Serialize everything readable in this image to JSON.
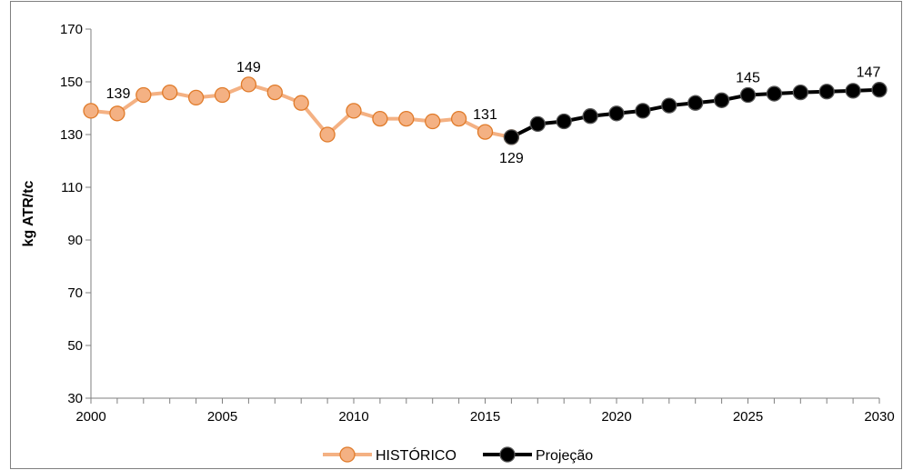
{
  "chart_data": {
    "type": "line",
    "title": "",
    "xlabel": "",
    "ylabel": "kg ATR/tc",
    "ylim": [
      30,
      170
    ],
    "yticks": [
      30,
      50,
      70,
      90,
      110,
      130,
      150,
      170
    ],
    "xlim": [
      2000,
      2030
    ],
    "xticks": [
      2000,
      2005,
      2010,
      2015,
      2020,
      2025,
      2030
    ],
    "grid": false,
    "legend": "bottom",
    "series": [
      {
        "name": "HISTÓRICO",
        "color": "#f4b183",
        "marker_edge": "#e07b2a",
        "x": [
          2000,
          2001,
          2002,
          2003,
          2004,
          2005,
          2006,
          2007,
          2008,
          2009,
          2010,
          2011,
          2012,
          2013,
          2014,
          2015,
          2016
        ],
        "values": [
          139,
          138,
          145,
          146,
          144,
          145,
          149,
          146,
          142,
          130,
          139,
          136,
          136,
          135,
          136,
          131,
          129
        ]
      },
      {
        "name": "Projeção",
        "color": "#000000",
        "marker_edge": "#555555",
        "x": [
          2016,
          2017,
          2018,
          2019,
          2020,
          2021,
          2022,
          2023,
          2024,
          2025,
          2026,
          2027,
          2028,
          2029,
          2030
        ],
        "values": [
          129,
          134,
          135,
          137,
          138,
          139,
          141,
          142,
          143,
          145,
          145.5,
          146,
          146.3,
          146.6,
          147
        ]
      }
    ],
    "annotations": [
      {
        "x": 2000,
        "y": 139,
        "text": "139",
        "pos": "right-above"
      },
      {
        "x": 2006,
        "y": 149,
        "text": "149",
        "pos": "above"
      },
      {
        "x": 2015,
        "y": 131,
        "text": "131",
        "pos": "above"
      },
      {
        "x": 2016,
        "y": 129,
        "text": "129",
        "pos": "below"
      },
      {
        "x": 2025,
        "y": 145,
        "text": "145",
        "pos": "above"
      },
      {
        "x": 2030,
        "y": 147,
        "text": "147",
        "pos": "above"
      }
    ]
  }
}
